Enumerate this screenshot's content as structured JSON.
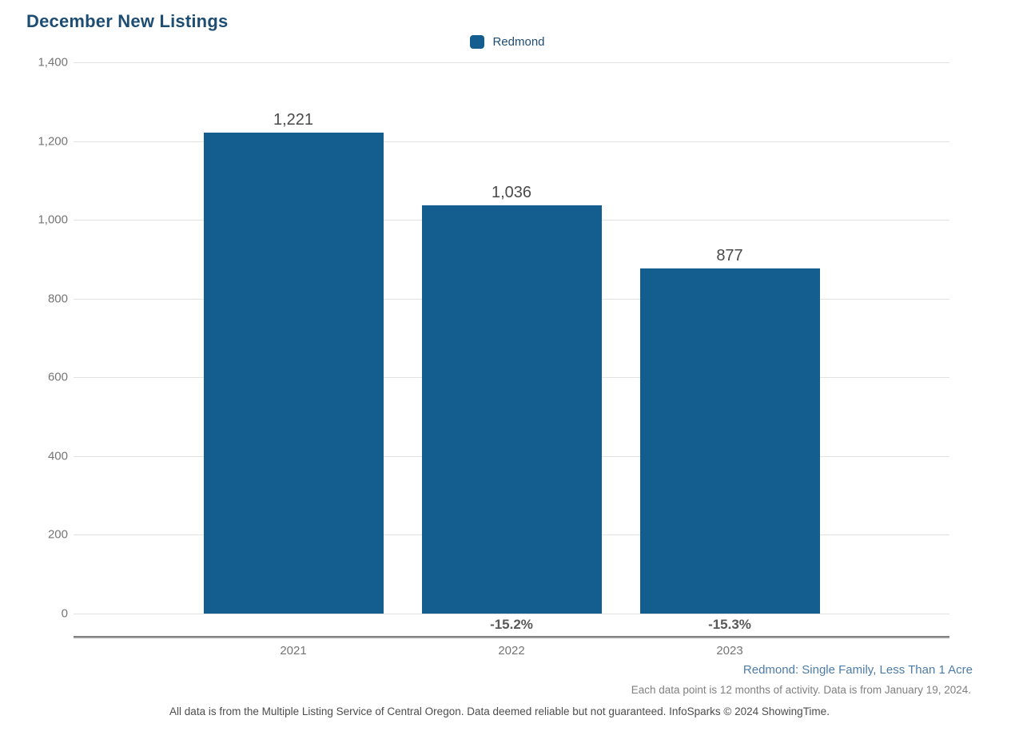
{
  "page": {
    "title": "December New Listings"
  },
  "chart_data": {
    "type": "bar",
    "title": "December New Listings",
    "categories": [
      "2021",
      "2022",
      "2023"
    ],
    "series": [
      {
        "name": "Redmond",
        "values": [
          1221,
          1036,
          877
        ]
      }
    ],
    "value_labels": [
      "1,221",
      "1,036",
      "877"
    ],
    "pct_change_labels": [
      "",
      "-15.2%",
      "-15.3%"
    ],
    "y_ticks": [
      0,
      200,
      400,
      600,
      800,
      1000,
      1200,
      1400
    ],
    "y_tick_labels": [
      "0",
      "200",
      "400",
      "600",
      "800",
      "1,000",
      "1,200",
      "1,400"
    ],
    "ylim": [
      0,
      1400
    ],
    "grid": true,
    "legend_position": "top-center"
  },
  "legend": {
    "label": "Redmond"
  },
  "footer": {
    "segment": "Redmond: Single Family, Less Than 1 Acre",
    "data_note": "Each data point is 12 months of activity. Data is from January 19, 2024.",
    "disclaimer": "All data is from the Multiple Listing Service of Central Oregon. Data deemed reliable but not guaranteed. InfoSparks © 2024 ShowingTime."
  },
  "colors": {
    "bar": "#135e8e",
    "title": "#1e4d73",
    "legend_text": "#1e4d73",
    "segment_text": "#4d7ca8",
    "value_label": "#4a4a4a",
    "pct_label": "#595959",
    "tick_label": "#757575",
    "gridline": "#e2e2e2"
  }
}
